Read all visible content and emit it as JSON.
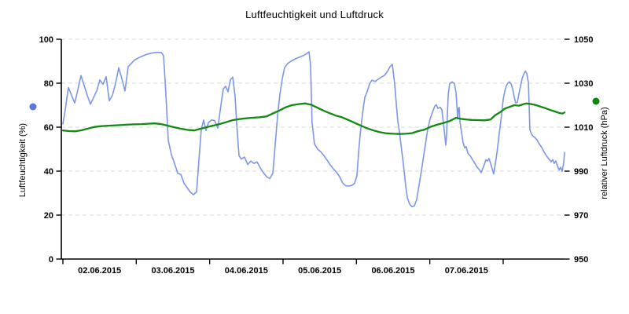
{
  "page": {
    "background": "#ffffff"
  },
  "chart_data": {
    "type": "line",
    "title": "Luftfeuchtigkeit und Luftdruck",
    "x_axis": {
      "labels": [
        "02.06.2015",
        "03.06.2015",
        "04.06.2015",
        "05.06.2015",
        "06.06.2015",
        "07.06.2015"
      ],
      "domain_days": [
        0,
        6.836
      ],
      "tick_days": [
        0,
        1,
        2,
        3,
        4,
        5,
        6
      ],
      "label_center_days": [
        0.5,
        1.5,
        2.5,
        3.5,
        4.5,
        5.5
      ]
    },
    "y_left": {
      "title": "Luftfeuchtigkeit (%)",
      "range": [
        0,
        100
      ],
      "ticks": [
        0,
        20,
        40,
        60,
        80,
        100
      ],
      "marker_color": "#5B78DD"
    },
    "y_right": {
      "title": "relativer Luftdruck (hPa)",
      "range": [
        950,
        1050
      ],
      "ticks": [
        950,
        970,
        990,
        1010,
        1030,
        1050
      ],
      "marker_color": "#0F860F"
    },
    "grid": {
      "show": true,
      "color": "#D9D9D9",
      "dash": "5,4"
    },
    "axis_color": "#000000",
    "series": [
      {
        "name": "Luftfeuchtigkeit",
        "axis": "left",
        "color": "#7D96E8",
        "width": 1.6,
        "points": [
          [
            0.0,
            61.5
          ],
          [
            0.032,
            68
          ],
          [
            0.075,
            78
          ],
          [
            0.118,
            74.5
          ],
          [
            0.161,
            71
          ],
          [
            0.204,
            77
          ],
          [
            0.246,
            83.5
          ],
          [
            0.289,
            79
          ],
          [
            0.332,
            74.5
          ],
          [
            0.375,
            70.5
          ],
          [
            0.418,
            73.5
          ],
          [
            0.461,
            76.5
          ],
          [
            0.504,
            81.5
          ],
          [
            0.546,
            79.5
          ],
          [
            0.589,
            83
          ],
          [
            0.632,
            72
          ],
          [
            0.675,
            74.5
          ],
          [
            0.718,
            80
          ],
          [
            0.761,
            87
          ],
          [
            0.804,
            82
          ],
          [
            0.846,
            76.5
          ],
          [
            0.889,
            87.5
          ],
          [
            0.932,
            89
          ],
          [
            0.975,
            90.5
          ],
          [
            1.029,
            91.5
          ],
          [
            1.093,
            92.5
          ],
          [
            1.157,
            93.3
          ],
          [
            1.221,
            93.8
          ],
          [
            1.286,
            94
          ],
          [
            1.339,
            94
          ],
          [
            1.371,
            92.5
          ],
          [
            1.404,
            75
          ],
          [
            1.436,
            54
          ],
          [
            1.479,
            47.5
          ],
          [
            1.521,
            43.5
          ],
          [
            1.564,
            39
          ],
          [
            1.607,
            38.5
          ],
          [
            1.65,
            34.5
          ],
          [
            1.693,
            32.5
          ],
          [
            1.736,
            30.5
          ],
          [
            1.779,
            29.3
          ],
          [
            1.821,
            30.5
          ],
          [
            1.854,
            45
          ],
          [
            1.886,
            59
          ],
          [
            1.918,
            63.2
          ],
          [
            1.95,
            58.5
          ],
          [
            1.982,
            62
          ],
          [
            2.025,
            63.3
          ],
          [
            2.068,
            63
          ],
          [
            2.111,
            59.6
          ],
          [
            2.154,
            70
          ],
          [
            2.186,
            77.4
          ],
          [
            2.218,
            78.6
          ],
          [
            2.25,
            76.1
          ],
          [
            2.282,
            81.5
          ],
          [
            2.314,
            82.8
          ],
          [
            2.346,
            74
          ],
          [
            2.368,
            62
          ],
          [
            2.4,
            47
          ],
          [
            2.432,
            45.5
          ],
          [
            2.475,
            46.4
          ],
          [
            2.518,
            43
          ],
          [
            2.561,
            44.6
          ],
          [
            2.604,
            43.5
          ],
          [
            2.646,
            44.2
          ],
          [
            2.689,
            41.5
          ],
          [
            2.732,
            39.3
          ],
          [
            2.775,
            37.5
          ],
          [
            2.818,
            36.6
          ],
          [
            2.861,
            39
          ],
          [
            2.893,
            52
          ],
          [
            2.925,
            65
          ],
          [
            2.957,
            75
          ],
          [
            2.989,
            82
          ],
          [
            3.021,
            87
          ],
          [
            3.064,
            89
          ],
          [
            3.118,
            90.2
          ],
          [
            3.171,
            91.1
          ],
          [
            3.225,
            91.9
          ],
          [
            3.279,
            92.6
          ],
          [
            3.321,
            93.4
          ],
          [
            3.354,
            94.3
          ],
          [
            3.375,
            88
          ],
          [
            3.396,
            62
          ],
          [
            3.429,
            52.4
          ],
          [
            3.471,
            50
          ],
          [
            3.514,
            48.8
          ],
          [
            3.557,
            47
          ],
          [
            3.6,
            45
          ],
          [
            3.643,
            42.9
          ],
          [
            3.686,
            41
          ],
          [
            3.729,
            39.5
          ],
          [
            3.771,
            37.5
          ],
          [
            3.814,
            34.5
          ],
          [
            3.857,
            33.3
          ],
          [
            3.9,
            33.2
          ],
          [
            3.943,
            33.6
          ],
          [
            3.975,
            34.5
          ],
          [
            4.007,
            38
          ],
          [
            4.029,
            48
          ],
          [
            4.05,
            56.4
          ],
          [
            4.071,
            62.5
          ],
          [
            4.093,
            68.6
          ],
          [
            4.114,
            73.5
          ],
          [
            4.146,
            76.1
          ],
          [
            4.179,
            79.6
          ],
          [
            4.211,
            81.4
          ],
          [
            4.254,
            80.8
          ],
          [
            4.296,
            81.8
          ],
          [
            4.339,
            82.8
          ],
          [
            4.382,
            83.6
          ],
          [
            4.425,
            85.5
          ],
          [
            4.457,
            87.5
          ],
          [
            4.489,
            88.6
          ],
          [
            4.521,
            80
          ],
          [
            4.543,
            70.7
          ],
          [
            4.564,
            62.5
          ],
          [
            4.586,
            57.9
          ],
          [
            4.607,
            52
          ],
          [
            4.629,
            46.4
          ],
          [
            4.65,
            40
          ],
          [
            4.671,
            33.5
          ],
          [
            4.693,
            28
          ],
          [
            4.725,
            25
          ],
          [
            4.757,
            23.8
          ],
          [
            4.789,
            24.2
          ],
          [
            4.821,
            27
          ],
          [
            4.843,
            31.5
          ],
          [
            4.875,
            38
          ],
          [
            4.907,
            45
          ],
          [
            4.939,
            52
          ],
          [
            4.971,
            58.9
          ],
          [
            5.004,
            63.7
          ],
          [
            5.036,
            66.7
          ],
          [
            5.068,
            69.6
          ],
          [
            5.089,
            70.2
          ],
          [
            5.111,
            68.5
          ],
          [
            5.143,
            69
          ],
          [
            5.164,
            67.9
          ],
          [
            5.196,
            58.9
          ],
          [
            5.218,
            51.8
          ],
          [
            5.229,
            56.5
          ],
          [
            5.25,
            74.4
          ],
          [
            5.271,
            79.8
          ],
          [
            5.304,
            80.6
          ],
          [
            5.336,
            79.8
          ],
          [
            5.357,
            75.6
          ],
          [
            5.368,
            70.8
          ],
          [
            5.379,
            63.7
          ],
          [
            5.389,
            68.5
          ],
          [
            5.4,
            69
          ],
          [
            5.411,
            62.5
          ],
          [
            5.432,
            57.7
          ],
          [
            5.454,
            53
          ],
          [
            5.475,
            50.6
          ],
          [
            5.496,
            51.2
          ],
          [
            5.518,
            48.2
          ],
          [
            5.55,
            47
          ],
          [
            5.582,
            45.2
          ],
          [
            5.614,
            43.5
          ],
          [
            5.646,
            41.7
          ],
          [
            5.679,
            40.5
          ],
          [
            5.7,
            39.3
          ],
          [
            5.721,
            41.1
          ],
          [
            5.743,
            43
          ],
          [
            5.764,
            45.2
          ],
          [
            5.786,
            44.6
          ],
          [
            5.807,
            45.8
          ],
          [
            5.829,
            43.5
          ],
          [
            5.85,
            41
          ],
          [
            5.871,
            38.7
          ],
          [
            5.893,
            43.5
          ],
          [
            5.914,
            48.2
          ],
          [
            5.936,
            54.2
          ],
          [
            5.957,
            60
          ],
          [
            5.979,
            66
          ],
          [
            6.0,
            72.6
          ],
          [
            6.021,
            76.2
          ],
          [
            6.043,
            78.8
          ],
          [
            6.064,
            80
          ],
          [
            6.086,
            80.6
          ],
          [
            6.107,
            79.8
          ],
          [
            6.129,
            77.4
          ],
          [
            6.15,
            73.8
          ],
          [
            6.171,
            71
          ],
          [
            6.193,
            71.4
          ],
          [
            6.214,
            75
          ],
          [
            6.236,
            78.6
          ],
          [
            6.257,
            82
          ],
          [
            6.279,
            84
          ],
          [
            6.3,
            85.5
          ],
          [
            6.321,
            84.5
          ],
          [
            6.343,
            80.4
          ],
          [
            6.354,
            70
          ],
          [
            6.364,
            58.9
          ],
          [
            6.386,
            56.8
          ],
          [
            6.407,
            55.9
          ],
          [
            6.429,
            55.4
          ],
          [
            6.461,
            54.2
          ],
          [
            6.493,
            52.3
          ],
          [
            6.525,
            50.8
          ],
          [
            6.557,
            48.7
          ],
          [
            6.589,
            47
          ],
          [
            6.621,
            45.6
          ],
          [
            6.654,
            44.3
          ],
          [
            6.675,
            45.2
          ],
          [
            6.696,
            43.5
          ],
          [
            6.718,
            44.6
          ],
          [
            6.739,
            42.5
          ],
          [
            6.761,
            40.5
          ],
          [
            6.782,
            41.7
          ],
          [
            6.804,
            39.9
          ],
          [
            6.825,
            44
          ],
          [
            6.836,
            48.5
          ]
        ]
      },
      {
        "name": "relativer Luftdruck",
        "axis": "right",
        "color": "#128A12",
        "width": 2.3,
        "points": [
          [
            0.0,
            1008.5
          ],
          [
            0.086,
            1008.2
          ],
          [
            0.171,
            1008.1
          ],
          [
            0.257,
            1008.6
          ],
          [
            0.343,
            1009.4
          ],
          [
            0.429,
            1010.1
          ],
          [
            0.536,
            1010.5
          ],
          [
            0.643,
            1010.7
          ],
          [
            0.75,
            1010.9
          ],
          [
            0.857,
            1011.1
          ],
          [
            0.964,
            1011.3
          ],
          [
            1.071,
            1011.4
          ],
          [
            1.179,
            1011.6
          ],
          [
            1.254,
            1011.7
          ],
          [
            1.339,
            1011.4
          ],
          [
            1.425,
            1010.7
          ],
          [
            1.511,
            1010
          ],
          [
            1.596,
            1009.4
          ],
          [
            1.693,
            1008.8
          ],
          [
            1.789,
            1008.5
          ],
          [
            1.875,
            1009.3
          ],
          [
            1.961,
            1010
          ],
          [
            2.046,
            1010.7
          ],
          [
            2.132,
            1011.4
          ],
          [
            2.218,
            1012.2
          ],
          [
            2.304,
            1013.1
          ],
          [
            2.389,
            1013.6
          ],
          [
            2.486,
            1014
          ],
          [
            2.582,
            1014.3
          ],
          [
            2.679,
            1014.5
          ],
          [
            2.775,
            1014.9
          ],
          [
            2.861,
            1016.2
          ],
          [
            2.946,
            1017.5
          ],
          [
            3.032,
            1019
          ],
          [
            3.118,
            1020
          ],
          [
            3.214,
            1020.5
          ],
          [
            3.3,
            1020.8
          ],
          [
            3.375,
            1020.3
          ],
          [
            3.461,
            1019
          ],
          [
            3.546,
            1017.6
          ],
          [
            3.632,
            1016.4
          ],
          [
            3.718,
            1015.3
          ],
          [
            3.804,
            1014.5
          ],
          [
            3.889,
            1013.3
          ],
          [
            3.975,
            1012
          ],
          [
            4.061,
            1010.7
          ],
          [
            4.146,
            1009.5
          ],
          [
            4.232,
            1008.5
          ],
          [
            4.318,
            1007.7
          ],
          [
            4.404,
            1007.2
          ],
          [
            4.5,
            1007
          ],
          [
            4.586,
            1006.9
          ],
          [
            4.671,
            1007
          ],
          [
            4.757,
            1007.3
          ],
          [
            4.843,
            1008.2
          ],
          [
            4.929,
            1008.9
          ],
          [
            5.014,
            1010.2
          ],
          [
            5.1,
            1011.1
          ],
          [
            5.186,
            1011.9
          ],
          [
            5.271,
            1012.8
          ],
          [
            5.357,
            1014.3
          ],
          [
            5.421,
            1013.8
          ],
          [
            5.496,
            1013.5
          ],
          [
            5.571,
            1013.3
          ],
          [
            5.657,
            1013.2
          ],
          [
            5.743,
            1013.1
          ],
          [
            5.829,
            1013.5
          ],
          [
            5.893,
            1015.5
          ],
          [
            5.957,
            1016.8
          ],
          [
            6.021,
            1018.4
          ],
          [
            6.086,
            1019.2
          ],
          [
            6.15,
            1020
          ],
          [
            6.214,
            1019.8
          ],
          [
            6.279,
            1020.5
          ],
          [
            6.321,
            1020.8
          ],
          [
            6.386,
            1020.5
          ],
          [
            6.45,
            1020
          ],
          [
            6.514,
            1019.3
          ],
          [
            6.579,
            1018.6
          ],
          [
            6.643,
            1017.8
          ],
          [
            6.707,
            1017.1
          ],
          [
            6.771,
            1016.4
          ],
          [
            6.814,
            1016.2
          ],
          [
            6.836,
            1016.7
          ]
        ]
      }
    ]
  }
}
